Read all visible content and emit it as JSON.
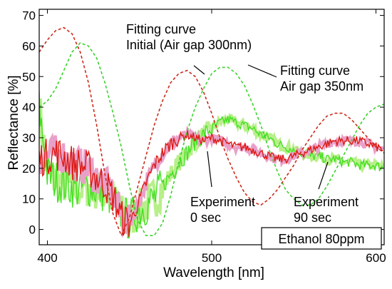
{
  "chart_data": {
    "type": "line",
    "xlabel": "Wavelength [nm]",
    "ylabel": "Reflectance [%]",
    "xlim": [
      395,
      605
    ],
    "ylim": [
      -5,
      72
    ],
    "xticks": [
      400,
      500,
      600
    ],
    "yticks": [
      0,
      10,
      20,
      30,
      40,
      50,
      60,
      70
    ],
    "grid": false,
    "annotations": {
      "fit_initial": "Fitting curve\nInitial (Air gap 300nm)",
      "fit_350": "Fitting curve\nAir gap 350nm",
      "exp_0": "Experiment\n0 sec",
      "exp_90": "Experiment\n90 sec",
      "box": "Ethanol 80ppm"
    },
    "colors": {
      "fit_initial": "#cc2a1a",
      "fit_350": "#3bd12e",
      "exp_0": "#dd1a14",
      "exp_0_shadow": "#e9a0c8",
      "exp_90": "#44e022",
      "exp_90_shadow": "#b8ef8a"
    },
    "series": [
      {
        "style": "dashed",
        "x": [
          395,
          400,
          405,
          410,
          415,
          420,
          425,
          430,
          435,
          440,
          445,
          450,
          455,
          460,
          465,
          470,
          475,
          480,
          485,
          490,
          495,
          500,
          505,
          510,
          515,
          520,
          525,
          530,
          535,
          540,
          545,
          550,
          555,
          560,
          565,
          570,
          575,
          580,
          585,
          590,
          595,
          600,
          605
        ],
        "y": [
          58,
          62,
          65,
          66,
          64,
          58,
          48,
          34,
          18,
          5,
          -2,
          4,
          14,
          24,
          34,
          42,
          48,
          51,
          52,
          50,
          45,
          38,
          30,
          23,
          17,
          12,
          9,
          8,
          10,
          13,
          17,
          21,
          26,
          30,
          34,
          37,
          38,
          38,
          36,
          33,
          30,
          27,
          25
        ]
      },
      {
        "style": "dashed",
        "x": [
          395,
          400,
          405,
          410,
          415,
          420,
          425,
          430,
          435,
          440,
          445,
          450,
          455,
          460,
          465,
          470,
          475,
          480,
          485,
          490,
          495,
          500,
          505,
          510,
          515,
          520,
          525,
          530,
          535,
          540,
          545,
          550,
          555,
          560,
          565,
          570,
          575,
          580,
          585,
          590,
          595,
          600,
          605
        ],
        "y": [
          40,
          42,
          46,
          52,
          58,
          61,
          60,
          56,
          48,
          38,
          27,
          14,
          3,
          -2,
          -2,
          2,
          11,
          22,
          32,
          40,
          46,
          51,
          53,
          53,
          51,
          47,
          41,
          34,
          26,
          19,
          13,
          10,
          8,
          8,
          10,
          14,
          19,
          24,
          29,
          34,
          38,
          40,
          41
        ]
      },
      {
        "style": "noisy",
        "x": [
          395,
          400,
          405,
          410,
          415,
          420,
          425,
          430,
          435,
          440,
          445,
          450,
          455,
          460,
          465,
          470,
          475,
          480,
          485,
          490,
          495,
          500,
          505,
          510,
          515,
          520,
          525,
          530,
          535,
          540,
          545,
          550,
          555,
          560,
          565,
          570,
          575,
          580,
          585,
          590,
          595,
          600,
          605
        ],
        "y": [
          23,
          24,
          25,
          24,
          22,
          21,
          20,
          17,
          15,
          11,
          4,
          2,
          8,
          15,
          21,
          25,
          28,
          30,
          31,
          30,
          29,
          30,
          29,
          28,
          27,
          27,
          26,
          25,
          24,
          23,
          23,
          24,
          25,
          26,
          27,
          28,
          29,
          29,
          29,
          29,
          28,
          27,
          26
        ]
      },
      {
        "style": "noisy",
        "x": [
          395,
          400,
          405,
          410,
          415,
          420,
          425,
          430,
          435,
          440,
          445,
          450,
          455,
          460,
          465,
          470,
          475,
          480,
          485,
          490,
          495,
          500,
          505,
          510,
          515,
          520,
          525,
          530,
          535,
          540,
          545,
          550,
          555,
          560,
          565,
          570,
          575,
          580,
          585,
          590,
          595,
          600,
          605
        ],
        "y": [
          40,
          18,
          16,
          15,
          14,
          13,
          14,
          13,
          12,
          10,
          5,
          3,
          6,
          8,
          10,
          14,
          18,
          22,
          25,
          29,
          31,
          33,
          35,
          36,
          35,
          34,
          33,
          31,
          30,
          28,
          27,
          26,
          25,
          24,
          24,
          23,
          23,
          22,
          22,
          21,
          21,
          21,
          20
        ]
      }
    ]
  }
}
